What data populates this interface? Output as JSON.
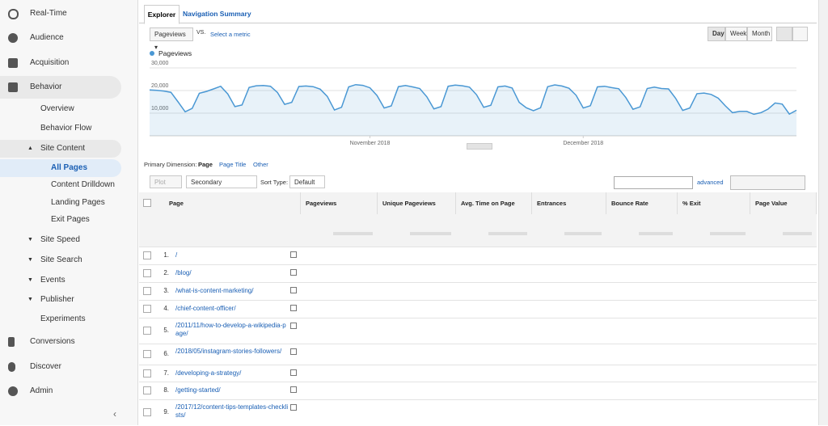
{
  "sidebar": {
    "items": [
      "Real-Time",
      "Audience",
      "Acquisition",
      "Behavior",
      "Overview",
      "Behavior Flow",
      "Site Content",
      "All Pages",
      "Content Drilldown",
      "Landing Pages",
      "Exit Pages",
      "Site Speed",
      "Site Search",
      "Events",
      "Publisher",
      "Experiments",
      "Conversions",
      "Discover",
      "Admin"
    ]
  },
  "tabs": [
    "Explorer",
    "Navigation Summary"
  ],
  "controls": {
    "metric": "Pageviews",
    "vs": "VS.",
    "select_metric": "Select a metric",
    "periods": [
      "Day",
      "Week",
      "Month"
    ]
  },
  "chart_data": {
    "type": "line",
    "series": [
      {
        "name": "Pageviews",
        "color": "#4a98d4",
        "values": [
          20300,
          20100,
          19800,
          19200,
          15000,
          10600,
          12100,
          18800,
          19600,
          20700,
          21900,
          18500,
          12900,
          13600,
          21400,
          22100,
          22200,
          21900,
          19100,
          13900,
          14800,
          21800,
          22000,
          21700,
          20600,
          17400,
          11400,
          12600,
          21600,
          22600,
          22300,
          21200,
          17800,
          12300,
          13200,
          21700,
          22200,
          21600,
          20900,
          17200,
          11900,
          12900,
          21900,
          22400,
          22100,
          21500,
          18100,
          12600,
          13500,
          21600,
          22000,
          21100,
          14800,
          12400,
          11100,
          12400,
          21700,
          22500,
          22000,
          21000,
          17900,
          12300,
          13300,
          21600,
          21900,
          21300,
          20800,
          16900,
          11700,
          12800,
          20900,
          21500,
          20900,
          20700,
          16600,
          11200,
          12300,
          18600,
          18900,
          18300,
          16600,
          13200,
          10200,
          10800,
          10800,
          9500,
          10200,
          11800,
          14500,
          14000,
          9600,
          11300
        ]
      }
    ],
    "ylim": [
      0,
      30000
    ],
    "yticks": [
      {
        "value": 10000,
        "label": "10,000"
      },
      {
        "value": 20000,
        "label": "20,000"
      },
      {
        "value": 30000,
        "label": "30,000"
      }
    ],
    "xticks": [
      {
        "value": 31,
        "label": "November 2018"
      },
      {
        "value": 61,
        "label": "December 2018"
      }
    ],
    "grid": true
  },
  "dimension": {
    "label": "Primary Dimension:",
    "options": [
      "Page",
      "Page Title",
      "Other"
    ]
  },
  "toolbar": {
    "plot_rows": "Plot Rows",
    "secondary": "Secondary dimension",
    "sort_label": "Sort Type:",
    "sort": "Default",
    "advanced": "advanced"
  },
  "table": {
    "headers": [
      "Page",
      "Pageviews",
      "Unique Pageviews",
      "Avg. Time on Page",
      "Entrances",
      "Bounce Rate",
      "% Exit",
      "Page Value"
    ],
    "rows": [
      [
        "1.",
        "/"
      ],
      [
        "2.",
        "/blog/"
      ],
      [
        "3.",
        "/what-is-content-marketing/"
      ],
      [
        "4.",
        "/chief-content-officer/"
      ],
      [
        "5.",
        "/2011/11/how-to-develop-a-wikipedia-page/"
      ],
      [
        "6.",
        "/2018/05/instagram-stories-followers/"
      ],
      [
        "7.",
        "/developing-a-strategy/"
      ],
      [
        "8.",
        "/getting-started/"
      ],
      [
        "9.",
        "/2017/12/content-tips-templates-checklists/"
      ]
    ]
  }
}
